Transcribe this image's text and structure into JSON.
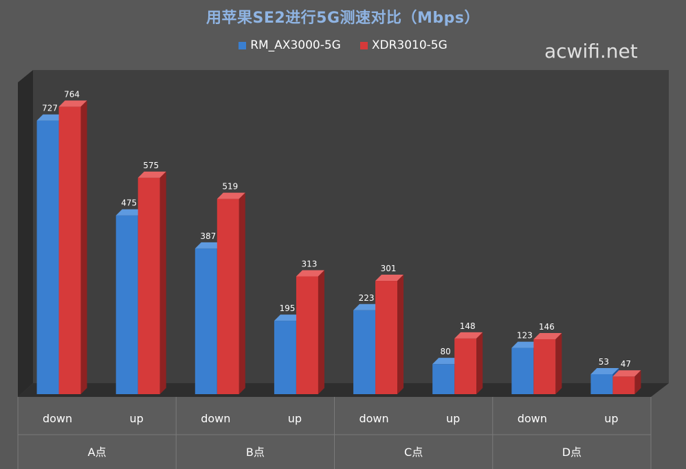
{
  "title": "用苹果SE2进行5G测速对比（Mbps）",
  "watermark": "acwifi.net",
  "colors": {
    "background": "#585858",
    "plot_back": "#3f3f3f",
    "plot_side": "#2a2a2a",
    "series1": "#3a7fd0",
    "series2": "#d63a3a",
    "title": "#8fb4e3"
  },
  "chart_data": {
    "type": "bar",
    "title": "用苹果SE2进行5G测速对比（Mbps）",
    "categories": [
      "down",
      "up",
      "down",
      "up",
      "down",
      "up",
      "down",
      "up"
    ],
    "groups": [
      "A点",
      "B点",
      "C点",
      "D点"
    ],
    "series": [
      {
        "name": "RM_AX3000-5G",
        "values": [
          727,
          475,
          387,
          195,
          223,
          80,
          123,
          53
        ]
      },
      {
        "name": "XDR3010-5G",
        "values": [
          764,
          575,
          519,
          313,
          301,
          148,
          146,
          47
        ]
      }
    ],
    "ylim": [
      0,
      800
    ],
    "grid": false,
    "legend": "top-center"
  }
}
